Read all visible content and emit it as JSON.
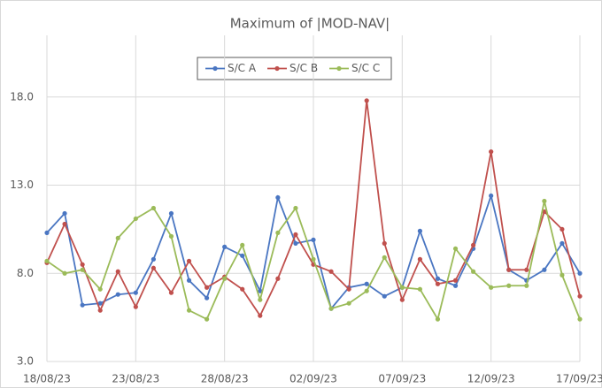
{
  "chart_data": {
    "type": "line",
    "title": "Maximum of |MOD-NAV|",
    "categories": [
      "18/08/23",
      null,
      null,
      null,
      null,
      "23/08/23",
      null,
      null,
      null,
      null,
      "28/08/23",
      null,
      null,
      null,
      null,
      "02/09/23",
      null,
      null,
      null,
      null,
      "07/09/23",
      null,
      null,
      null,
      null,
      "12/09/23",
      null,
      null,
      null,
      null,
      "17/09/23"
    ],
    "series": [
      {
        "name": "S/C A",
        "color": "#4a76c2",
        "values": [
          10.3,
          11.4,
          6.2,
          6.3,
          6.8,
          6.9,
          8.8,
          11.4,
          7.6,
          6.6,
          9.5,
          9.0,
          7.0,
          12.3,
          9.7,
          9.9,
          6.0,
          7.2,
          7.4,
          6.7,
          7.2,
          10.4,
          7.7,
          7.3,
          9.4,
          12.4,
          8.2,
          7.6,
          8.2,
          9.7,
          8.0
        ]
      },
      {
        "name": "S/C B",
        "color": "#c0504d",
        "values": [
          8.6,
          10.8,
          8.5,
          5.9,
          8.1,
          6.1,
          8.3,
          6.9,
          8.7,
          7.2,
          7.8,
          7.1,
          5.6,
          7.7,
          10.2,
          8.5,
          8.1,
          7.1,
          17.8,
          9.7,
          6.5,
          8.8,
          7.4,
          7.6,
          9.6,
          14.9,
          8.2,
          8.2,
          11.5,
          10.5,
          6.7
        ]
      },
      {
        "name": "S/C C",
        "color": "#9bbb59",
        "values": [
          8.7,
          8.0,
          8.2,
          7.1,
          10.0,
          11.1,
          11.7,
          10.1,
          5.9,
          5.4,
          7.7,
          9.6,
          6.5,
          10.3,
          11.7,
          8.8,
          6.0,
          6.3,
          7.0,
          8.9,
          7.2,
          7.1,
          5.4,
          9.4,
          8.1,
          7.2,
          7.3,
          7.3,
          12.1,
          7.9,
          5.4
        ]
      }
    ],
    "ylim": [
      3,
      21.5
    ],
    "yticks": [
      {
        "value": 3,
        "label": "3.0"
      },
      {
        "value": 8,
        "label": "8.0"
      },
      {
        "value": 13,
        "label": "13.0"
      },
      {
        "value": 18,
        "label": "18.0"
      }
    ],
    "grid": true
  }
}
